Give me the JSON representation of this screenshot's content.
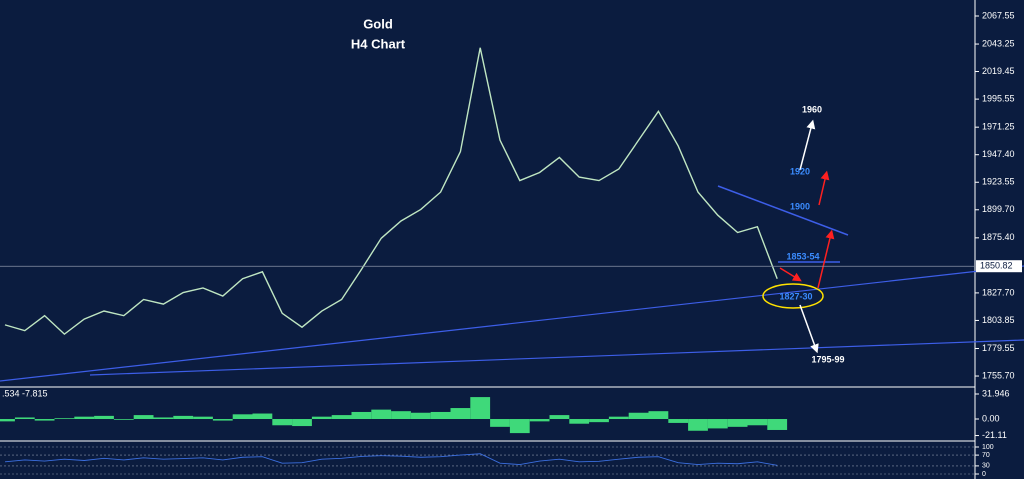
{
  "title": "Gold",
  "subtitle": "H4 Chart",
  "annotations": [
    "1960",
    "1920",
    "1900",
    "1853-54",
    "1827-30",
    "1795-99"
  ],
  "last_price": 1850.82,
  "chart_data": [
    {
      "type": "line",
      "name": "price",
      "color": "#bfe6c2",
      "values": [
        1800,
        1795,
        1808,
        1792,
        1805,
        1812,
        1808,
        1822,
        1818,
        1828,
        1832,
        1825,
        1840,
        1846,
        1810,
        1798,
        1812,
        1822,
        1848,
        1875,
        1890,
        1900,
        1915,
        1950,
        2040,
        1960,
        1925,
        1932,
        1945,
        1928,
        1925,
        1935,
        1960,
        1985,
        1955,
        1915,
        1895,
        1880,
        1885,
        1840
      ],
      "ylim": [
        1746.2,
        2081.4
      ],
      "yticks": [
        2067.55,
        2043.25,
        2019.45,
        1995.55,
        1971.25,
        {
          "value": 1947.4,
          "label": "1947.40"
        },
        1923.55,
        {
          "value": 1899.7,
          "label": "1899.70"
        },
        {
          "value": 1875.4,
          "label": "1875.40"
        },
        {
          "value": 1827.7,
          "label": "1827.70"
        },
        1803.85,
        1779.55,
        {
          "value": 1755.7,
          "label": "1755.70"
        }
      ]
    },
    {
      "type": "bar",
      "name": "oscillator",
      "header": ".534 -7.815",
      "color": "#3fd97a",
      "values": [
        -3,
        2,
        -2,
        1,
        3,
        4,
        -1,
        5,
        2,
        4,
        3,
        -2,
        6,
        7,
        -8,
        -9,
        3,
        5,
        9,
        12,
        10,
        8,
        9,
        14,
        28,
        -10,
        -18,
        -3,
        5,
        -6,
        -4,
        3,
        8,
        10,
        -5,
        -15,
        -12,
        -10,
        -8,
        -14
      ],
      "ylim": [
        -26.8,
        39.6
      ],
      "yticks": [
        31.946,
        {
          "value": 0,
          "label": "0.00"
        },
        -21.11
      ]
    },
    {
      "type": "line",
      "name": "rsi",
      "color": "#3b6fe0",
      "values": [
        45,
        52,
        48,
        55,
        50,
        58,
        52,
        60,
        55,
        57,
        60,
        52,
        62,
        64,
        40,
        42,
        55,
        58,
        65,
        68,
        66,
        62,
        64,
        70,
        75,
        40,
        35,
        48,
        55,
        45,
        47,
        55,
        62,
        64,
        42,
        35,
        40,
        38,
        45,
        32
      ],
      "ylim": [
        -18.5,
        118.5
      ],
      "yticks": [
        100,
        70,
        30,
        0
      ]
    }
  ]
}
